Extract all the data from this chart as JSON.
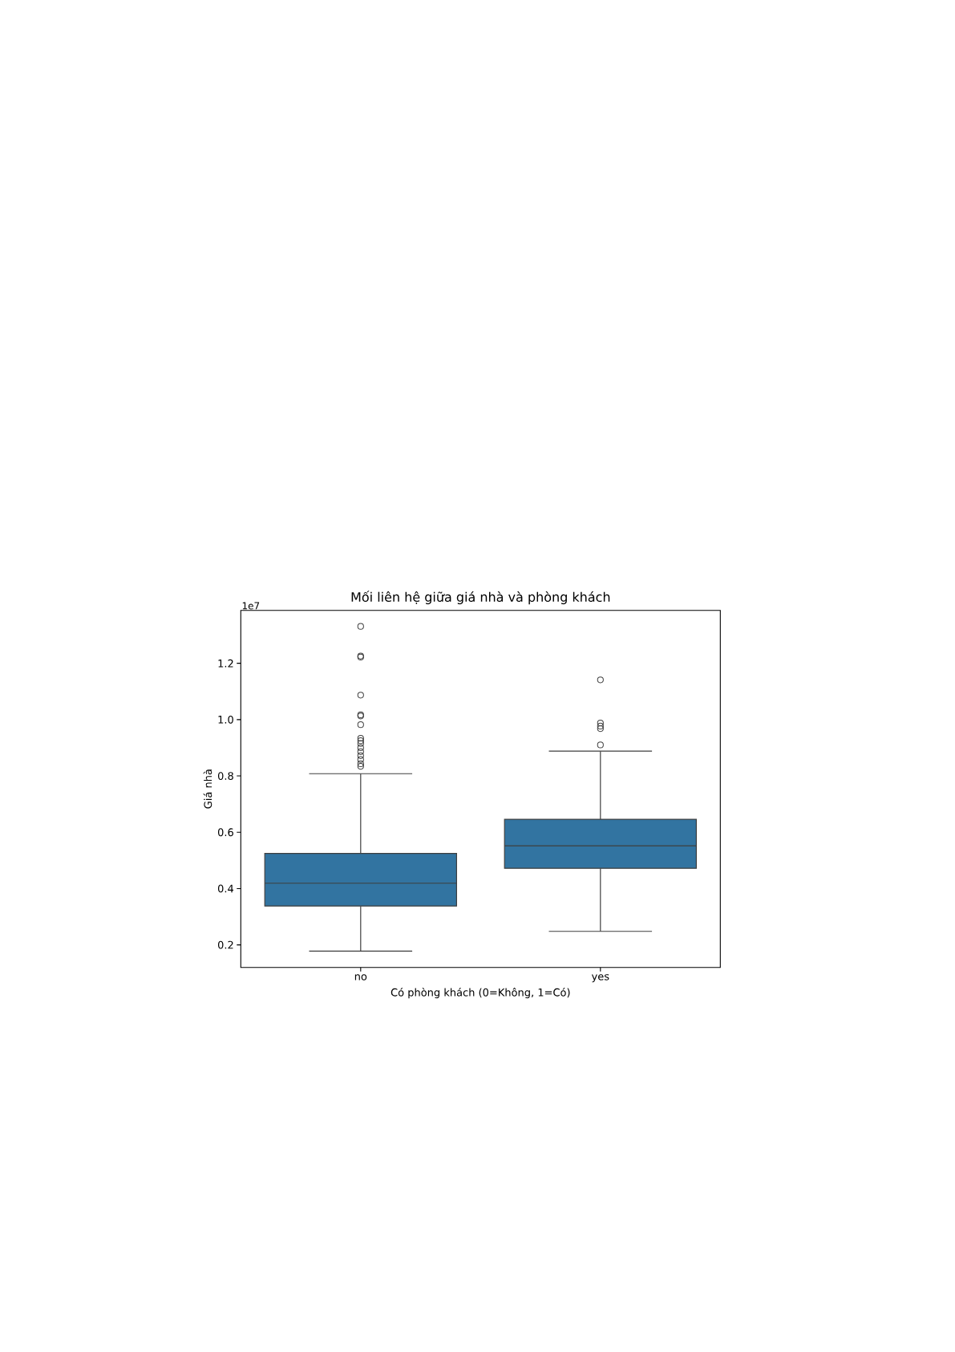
{
  "chart_data": {
    "type": "box",
    "title": "Mối liên hệ giữa giá nhà và phòng khách",
    "xlabel": "Có phòng khách (0=Không, 1=Có)",
    "ylabel": "Giá nhà",
    "annotations": [
      "1e7"
    ],
    "categories": [
      "no",
      "yes"
    ],
    "color": "#3274a1",
    "boxes": [
      {
        "low": 0.178,
        "q1": 0.338,
        "median": 0.419,
        "q3": 0.525,
        "high": 0.808,
        "outliers": [
          1.331,
          1.226,
          1.222,
          1.087,
          1.017,
          1.013,
          0.982,
          0.934,
          0.925,
          0.915,
          0.9,
          0.886,
          0.872,
          0.858,
          0.843,
          0.834
        ]
      },
      {
        "low": 0.248,
        "q1": 0.472,
        "median": 0.552,
        "q3": 0.646,
        "high": 0.888,
        "outliers": [
          1.141,
          0.988,
          0.977,
          0.968,
          0.91
        ]
      }
    ],
    "ylim": [
      0.12,
      1.388
    ],
    "yticks": [
      0.2,
      0.4,
      0.6,
      0.8,
      {
        "value": 1.0,
        "label": "1.0"
      },
      1.2
    ]
  }
}
